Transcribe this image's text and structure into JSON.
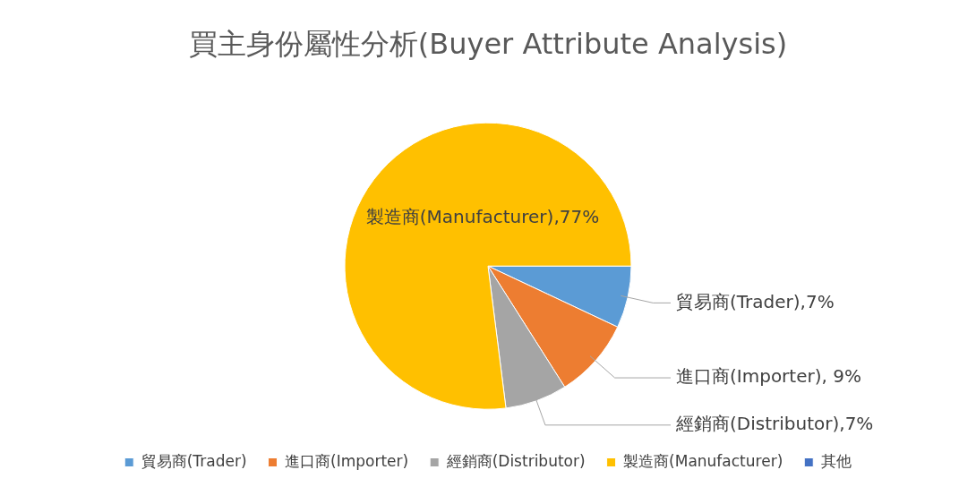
{
  "chart_data": {
    "type": "pie",
    "title": "買主身份屬性分析(Buyer Attribute Analysis)",
    "categories": [
      "貿易商(Trader)",
      "進口商(Importer)",
      "經銷商(Distributor)",
      "製造商(Manufacturer)",
      "其他"
    ],
    "values": [
      7,
      9,
      7,
      77,
      0
    ],
    "colors": [
      "#5b9bd5",
      "#ed7d31",
      "#a5a5a5",
      "#ffc000",
      "#4472c4"
    ],
    "value_labels": [
      "貿易商(Trader),7%",
      "進口商(Importer), 9%",
      "經銷商(Distributor),7%",
      "製造商(Manufacturer),77%",
      null
    ],
    "legend": "bottom"
  }
}
